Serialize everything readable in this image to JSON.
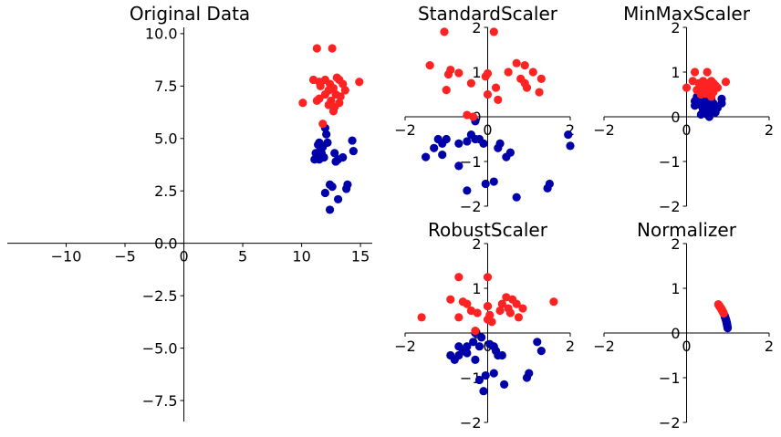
{
  "colors": {
    "class_0": "#0000aa",
    "class_1": "#ff2222"
  },
  "chart_data": [
    {
      "type": "scatter",
      "title": "Original Data",
      "xlim": [
        -15,
        16
      ],
      "ylim": [
        -8.5,
        10.3
      ],
      "xticks": [
        -10,
        -5,
        0,
        5,
        10,
        15
      ],
      "yticks": [
        -7.5,
        -5.0,
        -2.5,
        0.0,
        2.5,
        5.0,
        7.5,
        10.0
      ],
      "grid": false,
      "series": [
        {
          "values": [
            [
              12.0,
              5.5
            ],
            [
              11.5,
              4.8
            ],
            [
              11.8,
              4.6
            ],
            [
              12.1,
              5.2
            ],
            [
              12.2,
              4.8
            ],
            [
              11.6,
              4.5
            ],
            [
              11.4,
              4.7
            ],
            [
              11.2,
              4.3
            ],
            [
              11.7,
              4.3
            ],
            [
              11.1,
              4.0
            ],
            [
              11.5,
              4.0
            ],
            [
              11.9,
              4.1
            ],
            [
              12.8,
              4.3
            ],
            [
              13.1,
              4.0
            ],
            [
              12.9,
              3.9
            ],
            [
              13.5,
              4.1
            ],
            [
              14.3,
              4.9
            ],
            [
              14.4,
              4.4
            ],
            [
              12.6,
              2.7
            ],
            [
              12.4,
              2.8
            ],
            [
              12.0,
              2.4
            ],
            [
              13.1,
              2.1
            ],
            [
              13.9,
              2.8
            ],
            [
              13.8,
              2.6
            ],
            [
              12.4,
              1.6
            ]
          ]
        },
        {
          "values": [
            [
              11.3,
              9.3
            ],
            [
              12.6,
              9.3
            ],
            [
              11.0,
              7.8
            ],
            [
              11.5,
              7.7
            ],
            [
              11.6,
              7.5
            ],
            [
              12.0,
              7.8
            ],
            [
              12.4,
              7.6
            ],
            [
              12.7,
              7.4
            ],
            [
              13.0,
              7.9
            ],
            [
              13.2,
              7.8
            ],
            [
              13.5,
              7.6
            ],
            [
              12.3,
              7.3
            ],
            [
              12.9,
              7.1
            ],
            [
              13.3,
              7.0
            ],
            [
              13.7,
              7.3
            ],
            [
              12.0,
              7.1
            ],
            [
              11.5,
              6.9
            ],
            [
              10.1,
              6.7
            ],
            [
              11.3,
              6.8
            ],
            [
              12.5,
              6.8
            ],
            [
              12.8,
              6.5
            ],
            [
              13.2,
              6.7
            ],
            [
              12.3,
              6.6
            ],
            [
              12.7,
              6.3
            ],
            [
              14.9,
              7.7
            ],
            [
              11.8,
              5.7
            ]
          ]
        }
      ]
    },
    {
      "type": "scatter",
      "title": "StandardScaler",
      "xlim": [
        -2,
        2
      ],
      "ylim": [
        -2,
        2
      ],
      "xticks": [
        -2,
        0,
        2
      ],
      "yticks": [
        -2,
        -1,
        0,
        1,
        2
      ],
      "grid": false,
      "series": [
        {
          "values": [
            [
              -1.0,
              -0.5
            ],
            [
              -0.7,
              -1.1
            ],
            [
              -1.2,
              -0.5
            ],
            [
              -1.1,
              -0.6
            ],
            [
              -1.3,
              -0.7
            ],
            [
              -1.5,
              -0.9
            ],
            [
              -1.1,
              -0.85
            ],
            [
              -0.5,
              -0.55
            ],
            [
              -0.3,
              -0.5
            ],
            [
              -0.2,
              -0.5
            ],
            [
              -0.4,
              -0.4
            ],
            [
              -0.7,
              -0.6
            ],
            [
              -0.1,
              -0.6
            ],
            [
              -0.3,
              -0.1
            ],
            [
              0.25,
              -0.7
            ],
            [
              0.45,
              -0.9
            ],
            [
              0.55,
              -0.8
            ],
            [
              0.3,
              -0.6
            ],
            [
              -0.05,
              -1.5
            ],
            [
              0.15,
              -1.45
            ],
            [
              0.7,
              -1.8
            ],
            [
              -0.5,
              -1.65
            ],
            [
              1.5,
              -1.5
            ],
            [
              1.45,
              -1.6
            ],
            [
              1.95,
              -0.4
            ],
            [
              2.0,
              -0.65
            ]
          ]
        },
        {
          "values": [
            [
              -1.05,
              1.9
            ],
            [
              0.15,
              1.9
            ],
            [
              -1.4,
              1.15
            ],
            [
              -0.9,
              1.05
            ],
            [
              -0.95,
              0.95
            ],
            [
              -0.7,
              0.98
            ],
            [
              -0.4,
              0.75
            ],
            [
              -0.05,
              0.9
            ],
            [
              0.0,
              0.97
            ],
            [
              0.5,
              1.0
            ],
            [
              0.7,
              1.2
            ],
            [
              0.9,
              1.15
            ],
            [
              1.1,
              1.0
            ],
            [
              1.3,
              0.85
            ],
            [
              0.8,
              0.85
            ],
            [
              0.9,
              0.75
            ],
            [
              0.95,
              0.65
            ],
            [
              1.25,
              0.55
            ],
            [
              0.2,
              0.65
            ],
            [
              0.0,
              0.5
            ],
            [
              -1.0,
              0.6
            ],
            [
              0.25,
              0.38
            ],
            [
              -0.35,
              0.0
            ],
            [
              -0.5,
              0.04
            ]
          ]
        }
      ]
    },
    {
      "type": "scatter",
      "title": "MinMaxScaler",
      "xlim": [
        -2,
        2
      ],
      "ylim": [
        -2,
        2
      ],
      "xticks": [
        -2,
        0,
        2
      ],
      "yticks": [
        -2,
        -1,
        0,
        1,
        2
      ],
      "grid": false,
      "series": [
        {
          "values": [
            [
              0.2,
              0.35
            ],
            [
              0.25,
              0.45
            ],
            [
              0.3,
              0.3
            ],
            [
              0.35,
              0.5
            ],
            [
              0.4,
              0.55
            ],
            [
              0.45,
              0.4
            ],
            [
              0.5,
              0.35
            ],
            [
              0.35,
              0.25
            ],
            [
              0.55,
              0.45
            ],
            [
              0.6,
              0.4
            ],
            [
              0.2,
              0.25
            ],
            [
              0.3,
              0.35
            ],
            [
              0.5,
              0.3
            ],
            [
              0.65,
              0.3
            ],
            [
              0.85,
              0.4
            ],
            [
              0.85,
              0.3
            ],
            [
              0.4,
              0.15
            ],
            [
              0.45,
              0.1
            ],
            [
              0.5,
              0.05
            ],
            [
              0.6,
              0.15
            ],
            [
              0.75,
              0.2
            ],
            [
              0.55,
              0.0
            ],
            [
              0.35,
              0.05
            ],
            [
              0.45,
              0.2
            ],
            [
              0.7,
              0.1
            ]
          ]
        },
        {
          "values": [
            [
              0.2,
              1.0
            ],
            [
              0.5,
              1.0
            ],
            [
              0.15,
              0.8
            ],
            [
              0.3,
              0.75
            ],
            [
              0.35,
              0.7
            ],
            [
              0.4,
              0.8
            ],
            [
              0.5,
              0.75
            ],
            [
              0.55,
              0.7
            ],
            [
              0.6,
              0.8
            ],
            [
              0.65,
              0.75
            ],
            [
              0.7,
              0.7
            ],
            [
              0.45,
              0.65
            ],
            [
              0.55,
              0.62
            ],
            [
              0.65,
              0.6
            ],
            [
              0.75,
              0.65
            ],
            [
              0.4,
              0.6
            ],
            [
              0.3,
              0.62
            ],
            [
              0.0,
              0.65
            ],
            [
              0.25,
              0.6
            ],
            [
              0.5,
              0.55
            ],
            [
              0.55,
              0.5
            ],
            [
              0.65,
              0.55
            ],
            [
              0.45,
              0.52
            ],
            [
              0.6,
              0.45
            ],
            [
              0.95,
              0.78
            ],
            [
              0.35,
              0.5
            ]
          ]
        }
      ]
    },
    {
      "type": "scatter",
      "title": "RobustScaler",
      "xlim": [
        -2,
        2
      ],
      "ylim": [
        -2,
        2
      ],
      "xticks": [
        -2,
        0,
        2
      ],
      "yticks": [
        -2,
        -1,
        0,
        1,
        2
      ],
      "grid": false,
      "series": [
        {
          "values": [
            [
              -0.3,
              -0.6
            ],
            [
              -0.5,
              -0.3
            ],
            [
              -0.6,
              -0.4
            ],
            [
              -0.7,
              -0.3
            ],
            [
              -0.9,
              -0.5
            ],
            [
              -0.7,
              -0.5
            ],
            [
              -0.8,
              -0.6
            ],
            [
              -0.2,
              -0.3
            ],
            [
              -0.35,
              -0.2
            ],
            [
              -0.5,
              -0.45
            ],
            [
              -0.15,
              -0.1
            ],
            [
              0.2,
              -0.4
            ],
            [
              0.25,
              -0.5
            ],
            [
              0.35,
              -0.5
            ],
            [
              0.15,
              -0.3
            ],
            [
              -0.3,
              0.0
            ],
            [
              0.05,
              -0.25
            ],
            [
              -0.2,
              -1.05
            ],
            [
              0.15,
              -0.9
            ],
            [
              -0.05,
              -0.95
            ],
            [
              0.4,
              -1.15
            ],
            [
              -0.1,
              -1.3
            ],
            [
              1.0,
              -0.9
            ],
            [
              0.95,
              -1.0
            ],
            [
              1.2,
              -0.2
            ],
            [
              1.3,
              -0.4
            ]
          ]
        },
        {
          "values": [
            [
              -0.7,
              1.25
            ],
            [
              0.0,
              1.25
            ],
            [
              -1.6,
              0.35
            ],
            [
              -0.9,
              0.75
            ],
            [
              -0.6,
              0.7
            ],
            [
              -0.5,
              0.65
            ],
            [
              -0.25,
              0.45
            ],
            [
              -0.7,
              0.35
            ],
            [
              0.0,
              0.6
            ],
            [
              0.35,
              0.65
            ],
            [
              0.45,
              0.8
            ],
            [
              0.6,
              0.75
            ],
            [
              0.7,
              0.65
            ],
            [
              0.85,
              0.55
            ],
            [
              0.5,
              0.55
            ],
            [
              0.55,
              0.45
            ],
            [
              0.75,
              0.35
            ],
            [
              1.6,
              0.7
            ],
            [
              0.05,
              0.4
            ],
            [
              0.0,
              0.3
            ],
            [
              0.1,
              0.25
            ],
            [
              -0.4,
              0.5
            ],
            [
              0.3,
              0.5
            ],
            [
              -0.3,
              0.05
            ],
            [
              0.0,
              0.6
            ]
          ]
        }
      ]
    },
    {
      "type": "scatter",
      "title": "Normalizer",
      "xlim": [
        -2,
        2
      ],
      "ylim": [
        -2,
        2
      ],
      "xticks": [
        -2,
        0,
        2
      ],
      "yticks": [
        -2,
        -1,
        0,
        1,
        2
      ],
      "grid": false,
      "series": [
        {
          "values": [
            [
              0.92,
              0.39
            ],
            [
              0.93,
              0.37
            ],
            [
              0.94,
              0.34
            ],
            [
              0.95,
              0.31
            ],
            [
              0.96,
              0.28
            ],
            [
              0.965,
              0.26
            ],
            [
              0.97,
              0.24
            ],
            [
              0.975,
              0.22
            ],
            [
              0.98,
              0.2
            ],
            [
              0.985,
              0.17
            ],
            [
              0.99,
              0.14
            ],
            [
              0.995,
              0.11
            ],
            [
              0.93,
              0.35
            ],
            [
              0.95,
              0.3
            ],
            [
              0.97,
              0.23
            ],
            [
              0.98,
              0.19
            ]
          ]
        },
        {
          "values": [
            [
              0.77,
              0.64
            ],
            [
              0.79,
              0.61
            ],
            [
              0.8,
              0.6
            ],
            [
              0.82,
              0.57
            ],
            [
              0.83,
              0.56
            ],
            [
              0.84,
              0.54
            ],
            [
              0.85,
              0.53
            ],
            [
              0.86,
              0.51
            ],
            [
              0.87,
              0.49
            ],
            [
              0.88,
              0.47
            ],
            [
              0.89,
              0.46
            ],
            [
              0.9,
              0.44
            ],
            [
              0.81,
              0.58
            ],
            [
              0.85,
              0.52
            ],
            [
              0.88,
              0.48
            ],
            [
              0.78,
              0.62
            ]
          ]
        }
      ]
    }
  ]
}
